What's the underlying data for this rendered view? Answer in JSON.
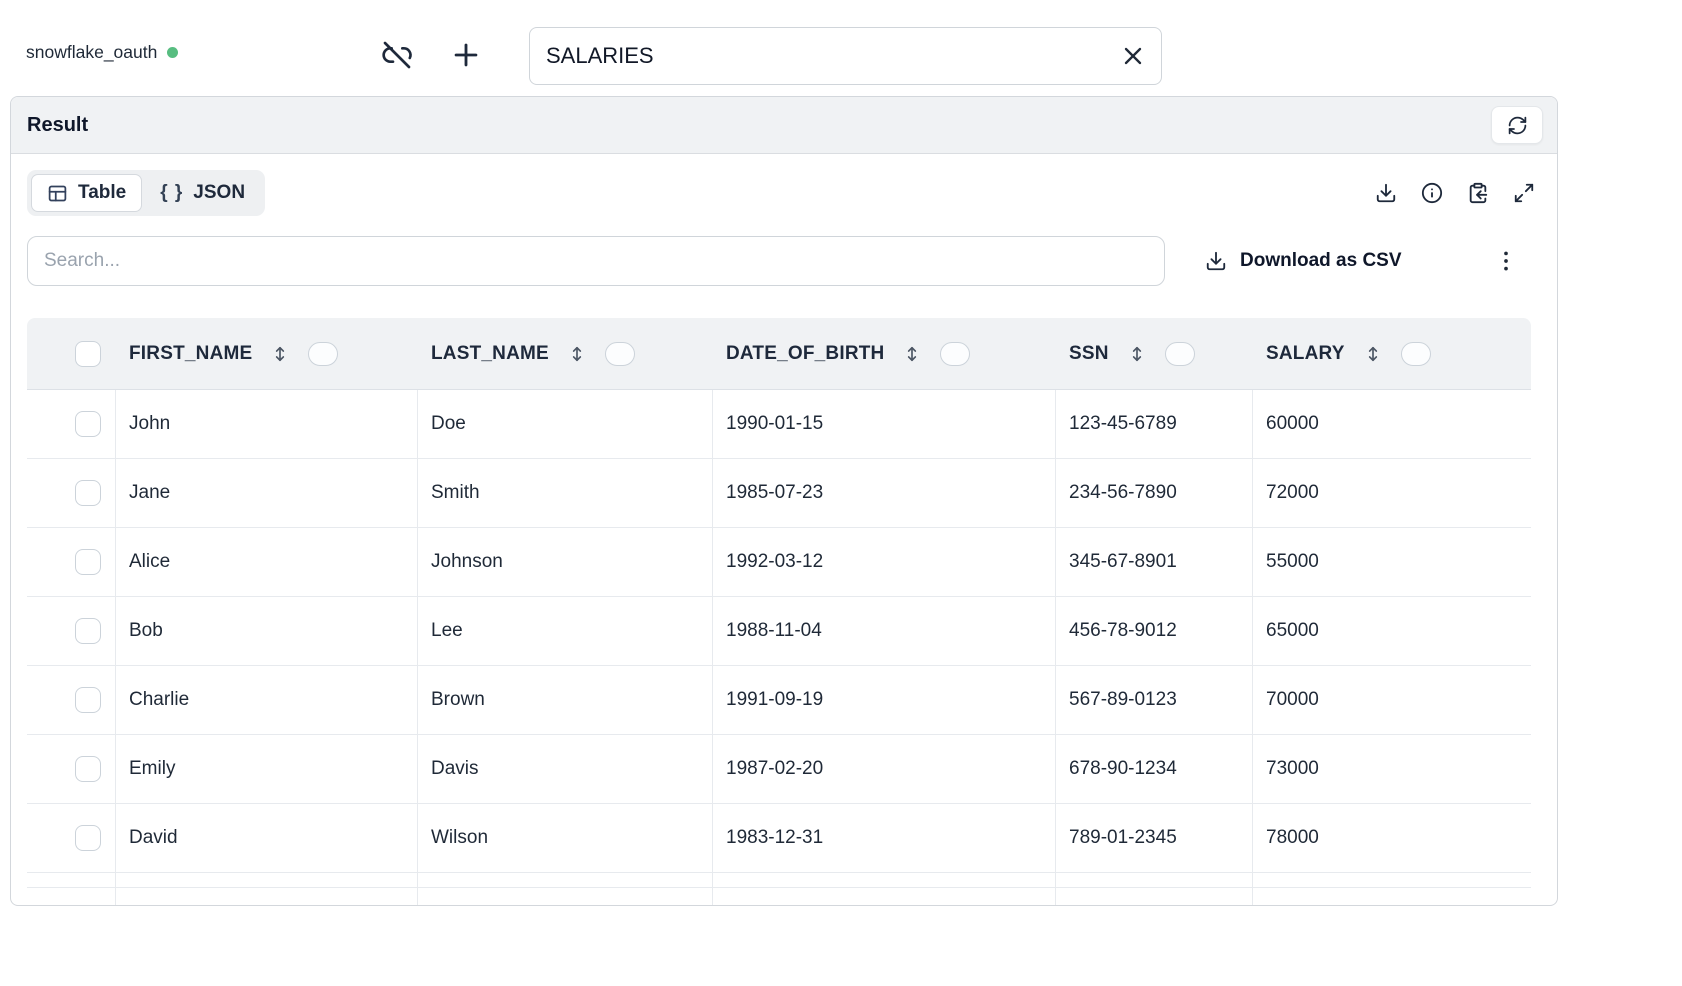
{
  "topbar": {
    "connection_name": "snowflake_oauth",
    "table_name_value": "SALARIES"
  },
  "result": {
    "title": "Result",
    "tabs": {
      "table": "Table",
      "json": "JSON",
      "json_icon": "{ }"
    },
    "search_placeholder": "Search...",
    "download_csv": "Download as CSV"
  },
  "table": {
    "columns": [
      "FIRST_NAME",
      "LAST_NAME",
      "DATE_OF_BIRTH",
      "SSN",
      "SALARY"
    ],
    "rows": [
      [
        "John",
        "Doe",
        "1990-01-15",
        "123-45-6789",
        "60000"
      ],
      [
        "Jane",
        "Smith",
        "1985-07-23",
        "234-56-7890",
        "72000"
      ],
      [
        "Alice",
        "Johnson",
        "1992-03-12",
        "345-67-8901",
        "55000"
      ],
      [
        "Bob",
        "Lee",
        "1988-11-04",
        "456-78-9012",
        "65000"
      ],
      [
        "Charlie",
        "Brown",
        "1991-09-19",
        "567-89-0123",
        "70000"
      ],
      [
        "Emily",
        "Davis",
        "1987-02-20",
        "678-90-1234",
        "73000"
      ],
      [
        "David",
        "Wilson",
        "1983-12-31",
        "789-01-2345",
        "78000"
      ]
    ]
  },
  "colors": {
    "status_green": "#57bd80"
  }
}
